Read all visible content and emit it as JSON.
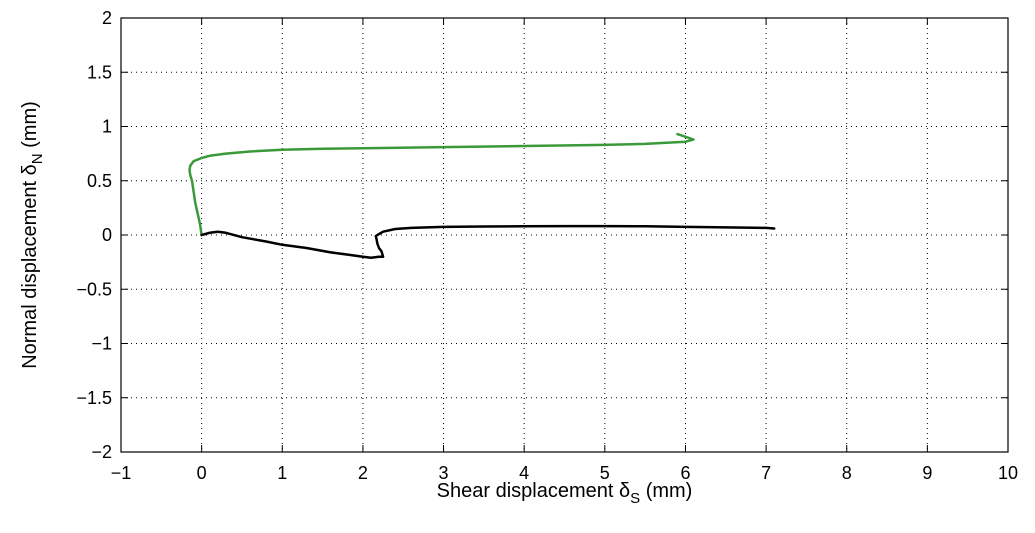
{
  "chart_data": {
    "type": "line",
    "title": "",
    "xlabel": "Shear displacement δ",
    "xlabel_sub": "S",
    "xlabel_unit": " (mm)",
    "ylabel": "Normal displacement δ",
    "ylabel_sub": "N",
    "ylabel_unit": " (mm)",
    "xlim": [
      -1,
      10
    ],
    "ylim": [
      -2,
      2
    ],
    "xticks": [
      -1,
      0,
      1,
      2,
      3,
      4,
      5,
      6,
      7,
      8,
      9,
      10
    ],
    "xtick_labels": [
      "−1",
      "0",
      "1",
      "2",
      "3",
      "4",
      "5",
      "6",
      "7",
      "8",
      "9",
      "10"
    ],
    "yticks": [
      -2,
      -1.5,
      -1,
      -0.5,
      0,
      0.5,
      1,
      1.5,
      2
    ],
    "ytick_labels": [
      "−2",
      "−1.5",
      "−1",
      "−0.5",
      "0",
      "0.5",
      "1",
      "1.5",
      "2"
    ],
    "grid": true,
    "legend": "none",
    "series": [
      {
        "color": "#3a9a3a",
        "x": [
          0.0,
          -0.02,
          -0.05,
          -0.08,
          -0.1,
          -0.12,
          -0.14,
          -0.15,
          -0.14,
          -0.1,
          0.0,
          0.1,
          0.3,
          0.6,
          1.0,
          1.5,
          2.0,
          3.0,
          4.0,
          5.0,
          5.5,
          6.0,
          6.1,
          5.9
        ],
        "y": [
          0.0,
          0.1,
          0.2,
          0.3,
          0.4,
          0.5,
          0.55,
          0.6,
          0.64,
          0.68,
          0.71,
          0.73,
          0.75,
          0.77,
          0.785,
          0.795,
          0.8,
          0.81,
          0.82,
          0.83,
          0.84,
          0.86,
          0.88,
          0.93
        ]
      },
      {
        "color": "#000000",
        "x": [
          0.0,
          0.1,
          0.2,
          0.3,
          0.5,
          0.8,
          1.0,
          1.3,
          1.6,
          1.8,
          2.0,
          2.1,
          2.2,
          2.25,
          2.23,
          2.2,
          2.18,
          2.17,
          2.16,
          2.18,
          2.25,
          2.4,
          2.6,
          2.8,
          3.0,
          3.5,
          4.0,
          4.5,
          5.0,
          5.5,
          6.0,
          6.5,
          7.0,
          7.1
        ],
        "y": [
          0.0,
          0.02,
          0.03,
          0.02,
          -0.02,
          -0.06,
          -0.09,
          -0.12,
          -0.16,
          -0.18,
          -0.2,
          -0.21,
          -0.2,
          -0.2,
          -0.15,
          -0.12,
          -0.08,
          -0.04,
          -0.01,
          0.0,
          0.03,
          0.055,
          0.065,
          0.07,
          0.075,
          0.078,
          0.08,
          0.082,
          0.082,
          0.08,
          0.075,
          0.07,
          0.065,
          0.06
        ]
      }
    ]
  }
}
